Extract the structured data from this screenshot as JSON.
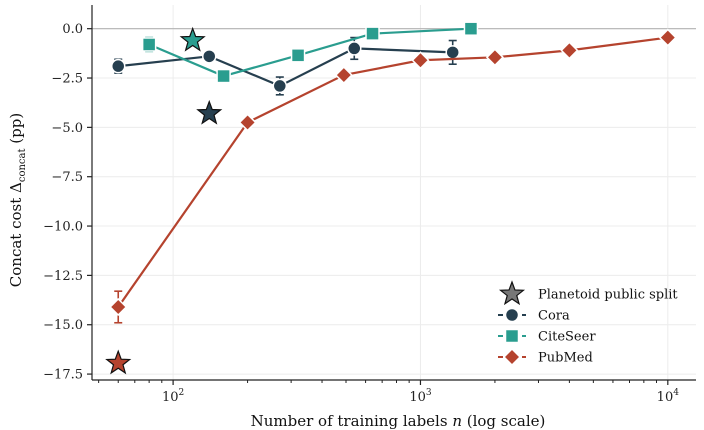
{
  "chart_data": {
    "type": "line",
    "title": "",
    "xlabel": "Number of training labels n (log scale)",
    "ylabel": "Concat cost Δconcat (pp)",
    "xscale": "log",
    "xlim": [
      47,
      13000
    ],
    "ylim": [
      -17.8,
      1.2
    ],
    "x_ticks": [
      {
        "value": 100,
        "label": "10^2"
      },
      {
        "value": 1000,
        "label": "10^3"
      },
      {
        "value": 10000,
        "label": "10^4"
      }
    ],
    "y_ticks": [
      {
        "value": 0,
        "label": "0.0"
      },
      {
        "value": -2.5,
        "label": "−2.5"
      },
      {
        "value": -5,
        "label": "−5.0"
      },
      {
        "value": -7.5,
        "label": "−7.5"
      },
      {
        "value": -10,
        "label": "−10.0"
      },
      {
        "value": -12.5,
        "label": "−12.5"
      },
      {
        "value": -15,
        "label": "−15.0"
      },
      {
        "value": -17.5,
        "label": "−17.5"
      }
    ],
    "grid": true,
    "reference_line_y": 0,
    "legend_position": "lower-right",
    "series": [
      {
        "name": "Cora",
        "color": "#263f4f",
        "marker": "circle",
        "points": [
          {
            "x": 60,
            "y": -1.9,
            "err": 0.35
          },
          {
            "x": 140,
            "y": -1.4,
            "err": 0.15
          },
          {
            "x": 270,
            "y": -2.9,
            "err": 0.45
          },
          {
            "x": 540,
            "y": -1.0,
            "err": 0.55
          },
          {
            "x": 1350,
            "y": -1.2,
            "err": 0.6
          }
        ]
      },
      {
        "name": "CiteSeer",
        "color": "#2a9d8f",
        "marker": "square",
        "points": [
          {
            "x": 80,
            "y": -0.8,
            "err": 0.35
          },
          {
            "x": 160,
            "y": -2.4,
            "err": 0.15
          },
          {
            "x": 320,
            "y": -1.35,
            "err": 0.1
          },
          {
            "x": 640,
            "y": -0.25,
            "err": 0.3
          },
          {
            "x": 1600,
            "y": 0.0,
            "err": 0.1
          }
        ]
      },
      {
        "name": "PubMed",
        "color": "#b5432e",
        "marker": "diamond",
        "points": [
          {
            "x": 60,
            "y": -14.1,
            "err": 0.8
          },
          {
            "x": 200,
            "y": -4.75,
            "err": 0.1
          },
          {
            "x": 490,
            "y": -2.35,
            "err": 0.1
          },
          {
            "x": 1000,
            "y": -1.6,
            "err": 0.1
          },
          {
            "x": 2000,
            "y": -1.45,
            "err": 0.1
          },
          {
            "x": 4000,
            "y": -1.1,
            "err": 0.1
          },
          {
            "x": 10000,
            "y": -0.45,
            "err": 0.1
          }
        ]
      }
    ],
    "planetoid_points": [
      {
        "dataset": "Cora",
        "x": 140,
        "y": -4.3,
        "color": "#263f4f"
      },
      {
        "dataset": "CiteSeer",
        "x": 120,
        "y": -0.6,
        "color": "#2a9d8f"
      },
      {
        "dataset": "PubMed",
        "x": 60,
        "y": -16.95,
        "color": "#b5432e"
      }
    ],
    "legend": [
      {
        "label": "Planetoid public split",
        "marker": "star",
        "color": "#777777"
      },
      {
        "label": "Cora",
        "marker": "circle",
        "color": "#263f4f"
      },
      {
        "label": "CiteSeer",
        "marker": "square",
        "color": "#2a9d8f"
      },
      {
        "label": "PubMed",
        "marker": "diamond",
        "color": "#b5432e"
      }
    ]
  }
}
